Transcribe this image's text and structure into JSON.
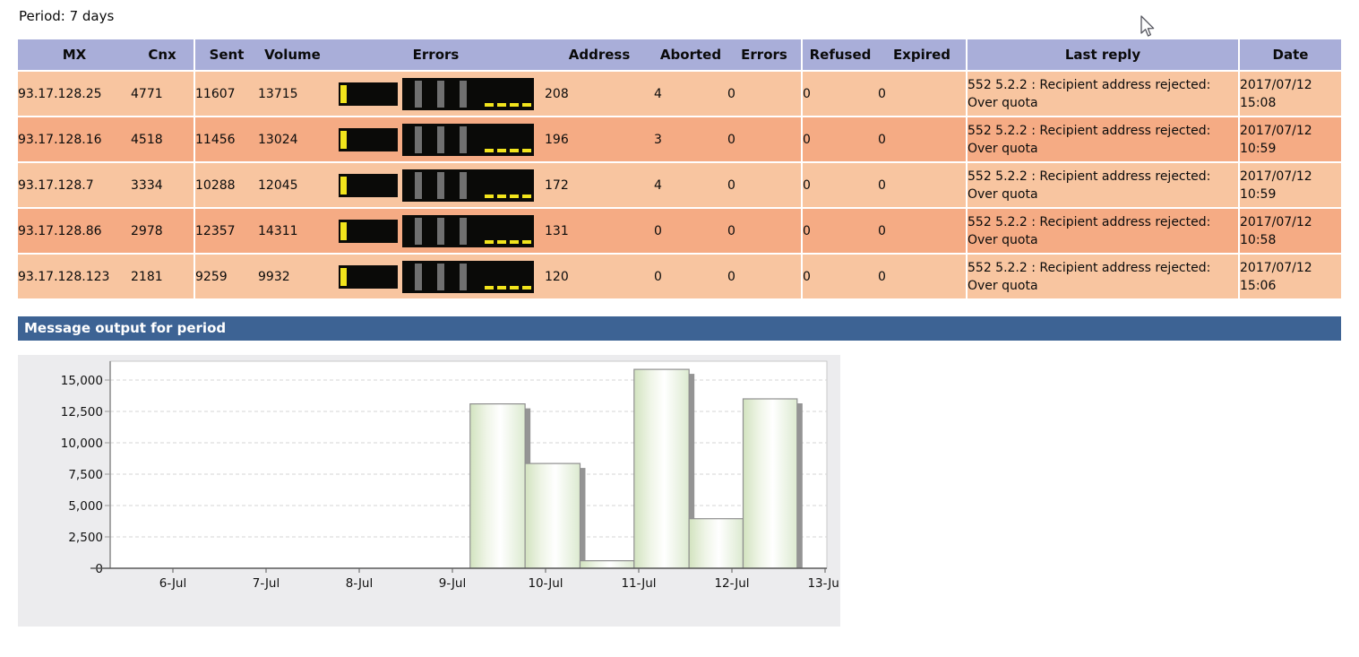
{
  "page": {
    "period_label": "Period: 7 days"
  },
  "colors": {
    "header_bg": "#a9aed9",
    "row_odd": "#f8c5a0",
    "row_even": "#f5ab84",
    "title_bar_bg": "#3d6394",
    "title_bar_text": "#ffffff",
    "gauge_black": "#0a0a08",
    "gauge_yellow": "#f2e41c",
    "gauge_gray": "#707070",
    "chart_bg": "#ececee"
  },
  "table": {
    "columns": [
      {
        "key": "mx",
        "label": "MX"
      },
      {
        "key": "cnx",
        "label": "Cnx"
      },
      {
        "key": "sent",
        "label": "Sent"
      },
      {
        "key": "volume",
        "label": "Volume"
      },
      {
        "key": "errors_graph",
        "label": "Errors",
        "type": "graph"
      },
      {
        "key": "address",
        "label": "Address"
      },
      {
        "key": "aborted",
        "label": "Aborted"
      },
      {
        "key": "errors",
        "label": "Errors"
      },
      {
        "key": "refused",
        "label": "Refused"
      },
      {
        "key": "expired",
        "label": "Expired"
      },
      {
        "key": "last_reply",
        "label": "Last reply"
      },
      {
        "key": "date",
        "label": "Date"
      }
    ],
    "rows": [
      {
        "mx": "93.17.128.25",
        "cnx": "4771",
        "sent": "11607",
        "volume": "13715",
        "address": "208",
        "aborted": "4",
        "errors": "0",
        "refused": "0",
        "expired": "0",
        "last_reply": "552 5.2.2 : Recipient address rejected: Over quota",
        "date": "2017/07/12 15:08"
      },
      {
        "mx": "93.17.128.16",
        "cnx": "4518",
        "sent": "11456",
        "volume": "13024",
        "address": "196",
        "aborted": "3",
        "errors": "0",
        "refused": "0",
        "expired": "0",
        "last_reply": "552 5.2.2 : Recipient address rejected: Over quota",
        "date": "2017/07/12 10:59"
      },
      {
        "mx": "93.17.128.7",
        "cnx": "3334",
        "sent": "10288",
        "volume": "12045",
        "address": "172",
        "aborted": "4",
        "errors": "0",
        "refused": "0",
        "expired": "0",
        "last_reply": "552 5.2.2 : Recipient address rejected: Over quota",
        "date": "2017/07/12 10:59"
      },
      {
        "mx": "93.17.128.86",
        "cnx": "2978",
        "sent": "12357",
        "volume": "14311",
        "address": "131",
        "aborted": "0",
        "errors": "0",
        "refused": "0",
        "expired": "0",
        "last_reply": "552 5.2.2 : Recipient address rejected: Over quota",
        "date": "2017/07/12 10:58"
      },
      {
        "mx": "93.17.128.123",
        "cnx": "2181",
        "sent": "9259",
        "volume": "9932",
        "address": "120",
        "aborted": "0",
        "errors": "0",
        "refused": "0",
        "expired": "0",
        "last_reply": "552 5.2.2 : Recipient address rejected: Over quota",
        "date": "2017/07/12 15:06"
      }
    ]
  },
  "section": {
    "title": "Message output for period"
  },
  "chart_data": {
    "type": "bar",
    "title": "Message output for period",
    "xlabel": "",
    "ylabel": "",
    "x_tick_labels": [
      "6-Jul",
      "7-Jul",
      "8-Jul",
      "9-Jul",
      "10-Jul",
      "11-Jul",
      "12-Jul",
      "13-Jul"
    ],
    "x_tick_days": [
      6,
      7,
      8,
      9,
      10,
      11,
      12,
      13
    ],
    "y_ticks": [
      0,
      2500,
      5000,
      7500,
      10000,
      12500,
      15000
    ],
    "ylim": [
      0,
      16500
    ],
    "grid": "dashed-horizontal",
    "legend": "none",
    "bars": [
      {
        "start_day": 9.19,
        "end_day": 9.78,
        "value": 13100
      },
      {
        "start_day": 9.78,
        "end_day": 10.37,
        "value": 8350
      },
      {
        "start_day": 10.37,
        "end_day": 10.95,
        "value": 600
      },
      {
        "start_day": 10.95,
        "end_day": 11.54,
        "value": 15850
      },
      {
        "start_day": 11.54,
        "end_day": 12.12,
        "value": 3950
      },
      {
        "start_day": 12.12,
        "end_day": 12.7,
        "value": 13500
      }
    ],
    "bar_fill_gradient": [
      "#d2e3bf",
      "#ffffff",
      "#dcead0"
    ],
    "bar_border": "#8f8f8f",
    "bar_shadow": "#949494"
  }
}
